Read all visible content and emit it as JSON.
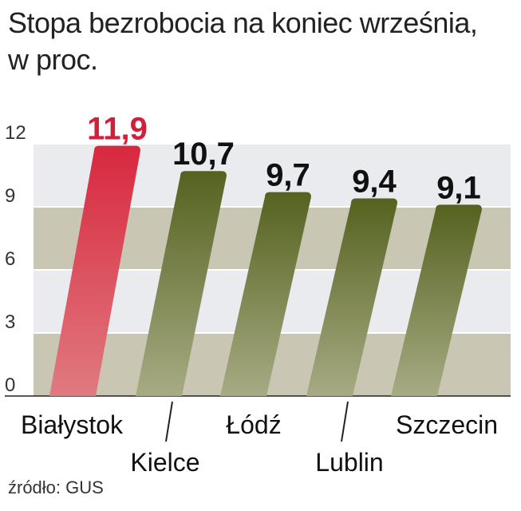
{
  "chart_data": {
    "type": "bar",
    "title": [
      "Stopa bezrobocia na koniec września,",
      "w proc."
    ],
    "categories": [
      "Białystok",
      "Kielce",
      "Łódź",
      "Lublin",
      "Szczecin"
    ],
    "values": [
      11.9,
      10.7,
      9.7,
      9.4,
      9.1
    ],
    "value_labels": [
      "11,9",
      "10,7",
      "9,7",
      "9,4",
      "9,1"
    ],
    "y_ticks": [
      "0",
      "3",
      "6",
      "9",
      "12"
    ],
    "y_tick_values": [
      0,
      3,
      6,
      9,
      12
    ],
    "ylim": [
      0,
      12
    ],
    "grid": true,
    "highlight_index": 0,
    "colors": {
      "highlight": "#d8283f",
      "highlight_label": "#d0203a",
      "bar": "#5f6b28",
      "label": "#111111",
      "band_light": "#e9ebee",
      "band_dark": "#c9c7b3"
    }
  },
  "source": "źródło: GUS"
}
